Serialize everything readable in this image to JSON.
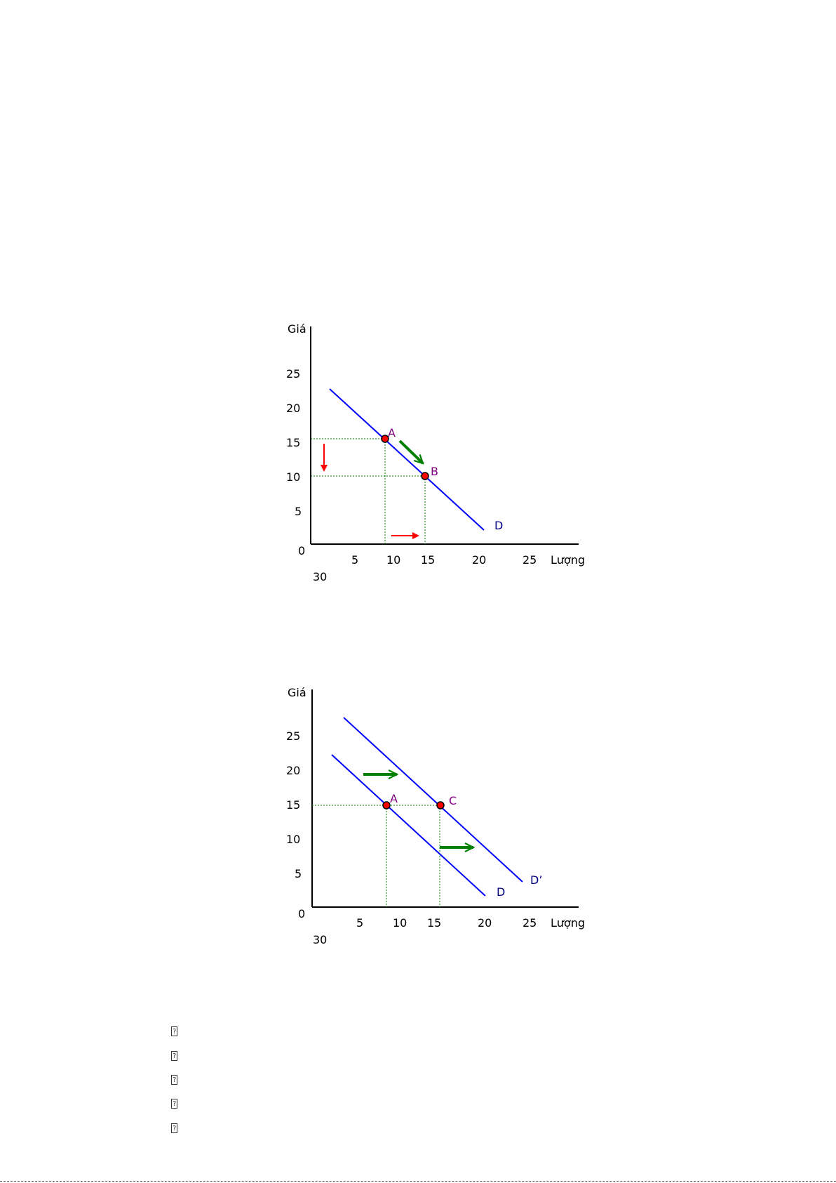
{
  "chart_data": [
    {
      "type": "line",
      "title": "",
      "ylabel": "Giá",
      "xlabel": "Lượng",
      "x_ticks": [
        "5",
        "10",
        "15",
        "20",
        "25"
      ],
      "x_extra_label": "30",
      "y_ticks": [
        "25",
        "20",
        "15",
        "10",
        "5"
      ],
      "origin_label": "0",
      "xlim": [
        0,
        30
      ],
      "ylim": [
        0,
        30
      ],
      "series": [
        {
          "name": "D",
          "color": "#0000ff",
          "points": [
            [
              2,
              23
            ],
            [
              20,
              2.5
            ]
          ]
        }
      ],
      "points": [
        {
          "label": "A",
          "x": 8.5,
          "y": 15.3
        },
        {
          "label": "B",
          "x": 13.5,
          "y": 10
        }
      ],
      "arrows": [
        {
          "color": "#008000",
          "from": [
            10,
            15
          ],
          "to": [
            13.3,
            11.5
          ]
        },
        {
          "color": "#ff0000",
          "from": [
            1.8,
            14.2
          ],
          "to": [
            1.8,
            10.8
          ]
        },
        {
          "color": "#ff0000",
          "from": [
            9.3,
            1.3
          ],
          "to": [
            13,
            1.3
          ]
        }
      ],
      "colors": {
        "curve": "#0000ff",
        "point_fill": "#ff0000",
        "point_label": "#800080",
        "guide": "#008000"
      }
    },
    {
      "type": "line",
      "title": "",
      "ylabel": "Giá",
      "xlabel": "Lượng",
      "x_ticks": [
        "5",
        "10",
        "15",
        "20",
        "25"
      ],
      "x_extra_label": "30",
      "y_ticks": [
        "25",
        "20",
        "15",
        "10",
        "5"
      ],
      "origin_label": "0",
      "xlim": [
        0,
        30
      ],
      "ylim": [
        0,
        30
      ],
      "series": [
        {
          "name": "D",
          "color": "#0000ff",
          "points": [
            [
              2,
              22.5
            ],
            [
              20,
              2
            ]
          ]
        },
        {
          "name": "D’",
          "color": "#0000ff",
          "points": [
            [
              3.5,
              27.5
            ],
            [
              24,
              3.5
            ]
          ]
        }
      ],
      "points": [
        {
          "label": "A",
          "x": 8.7,
          "y": 14.8
        },
        {
          "label": "C",
          "x": 15,
          "y": 14.8
        }
      ],
      "arrows": [
        {
          "color": "#008000",
          "from": [
            6,
            19.5
          ],
          "to": [
            10.5,
            19.5
          ]
        },
        {
          "color": "#008000",
          "from": [
            15,
            8.5
          ],
          "to": [
            19.5,
            8.5
          ]
        }
      ],
      "colors": {
        "curve": "#0000ff",
        "point_fill": "#ff0000",
        "point_label": "#800080",
        "guide": "#008000"
      }
    }
  ],
  "bullets": [
    "",
    "",
    "",
    "",
    ""
  ]
}
